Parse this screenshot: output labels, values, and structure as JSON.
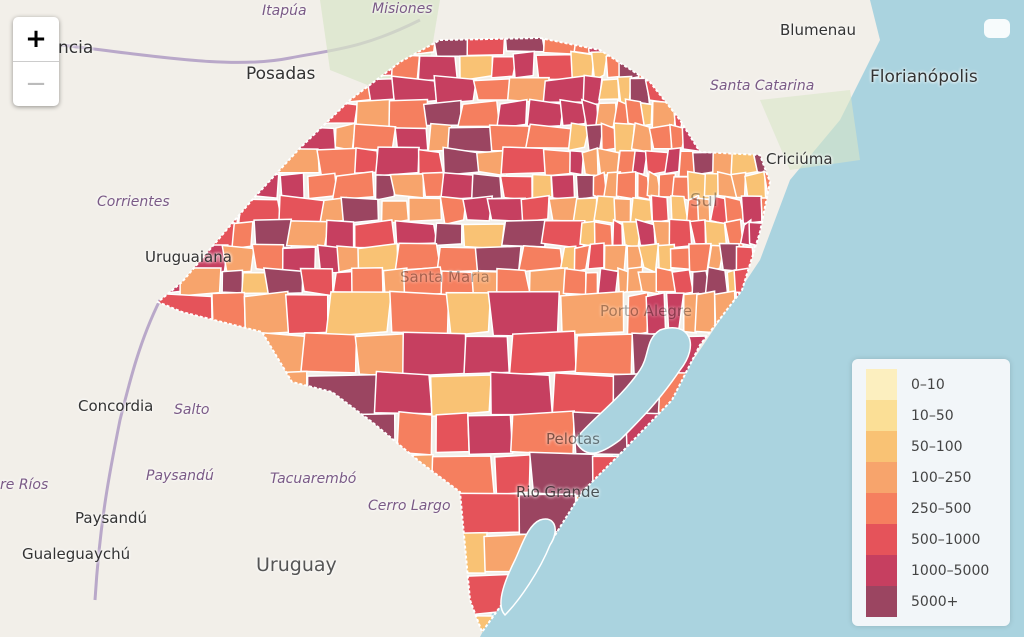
{
  "zoom_controls": {
    "zoom_in": "+",
    "zoom_out": "−"
  },
  "labels": {
    "itapua": "Itapúa",
    "misiones": "Misiones",
    "posadas": "Posadas",
    "resistencia_partial": "ncia",
    "blumenau": "Blumenau",
    "santa_catarina": "Santa Catarina",
    "florianopolis": "Florianópolis",
    "criciuma": "Criciúma",
    "corrientes": "Corrientes",
    "uruguaiana": "Uruguaiana",
    "concordia": "Concordia",
    "salto": "Salto",
    "paysandu_dept": "Paysandú",
    "tacuarembo": "Tacuarembó",
    "cerro_largo": "Cerro Largo",
    "entre_rios_partial": "re Ríos",
    "paysandu": "Paysandú",
    "gualeguaychu": "Gualeguaychú",
    "uruguay": "Uruguay",
    "pelotas": "Pelotas",
    "rio_grande": "Rio Grande",
    "santa_maria": "Santa Maria",
    "porto_alegre": "Porto Alegre",
    "rs_partial": "Sul"
  },
  "legend": {
    "items": [
      {
        "label": "0–10",
        "color": "#fcefbf"
      },
      {
        "label": "10–50",
        "color": "#fbdf96"
      },
      {
        "label": "50–100",
        "color": "#f9c274"
      },
      {
        "label": "100–250",
        "color": "#f7a46c"
      },
      {
        "label": "250–500",
        "color": "#f57f5f"
      },
      {
        "label": "500–1000",
        "color": "#e5535a"
      },
      {
        "label": "1000–5000",
        "color": "#c63f60"
      },
      {
        "label": "5000+",
        "color": "#9b4561"
      }
    ]
  },
  "colors": {
    "land": "#f2efe9",
    "water": "#aad3df",
    "border": "#ffffff"
  }
}
